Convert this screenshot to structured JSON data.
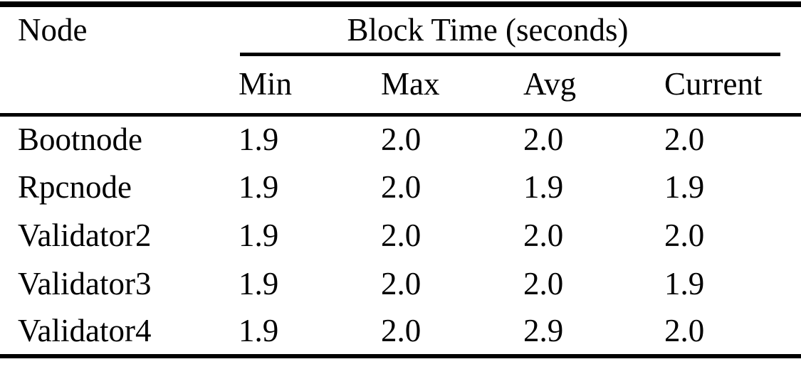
{
  "page": {
    "background_color": "#ffffff",
    "text_color": "#000000"
  },
  "table": {
    "node_col_header": "Node",
    "group_header": "Block Time (seconds)",
    "sub_headers": [
      "Min",
      "Max",
      "Avg",
      "Current"
    ],
    "rows": [
      [
        "Bootnode",
        "1.9",
        "2.0",
        "2.0",
        "2.0"
      ],
      [
        "Rpcnode",
        "1.9",
        "2.0",
        "1.9",
        "1.9"
      ],
      [
        "Validator2",
        "1.9",
        "2.0",
        "2.0",
        "2.0"
      ],
      [
        "Validator3",
        "1.9",
        "2.0",
        "2.0",
        "1.9"
      ],
      [
        "Validator4",
        "1.9",
        "2.0",
        "2.9",
        "2.0"
      ]
    ]
  },
  "chart_data": {
    "type": "table",
    "title": "Block Time (seconds)",
    "columns": [
      "Node",
      "Min",
      "Max",
      "Avg",
      "Current"
    ],
    "rows": [
      [
        "Bootnode",
        1.9,
        2.0,
        2.0,
        2.0
      ],
      [
        "Rpcnode",
        1.9,
        2.0,
        1.9,
        1.9
      ],
      [
        "Validator2",
        1.9,
        2.0,
        2.0,
        2.0
      ],
      [
        "Validator3",
        1.9,
        2.0,
        2.0,
        1.9
      ],
      [
        "Validator4",
        1.9,
        2.0,
        2.9,
        2.0
      ]
    ]
  }
}
